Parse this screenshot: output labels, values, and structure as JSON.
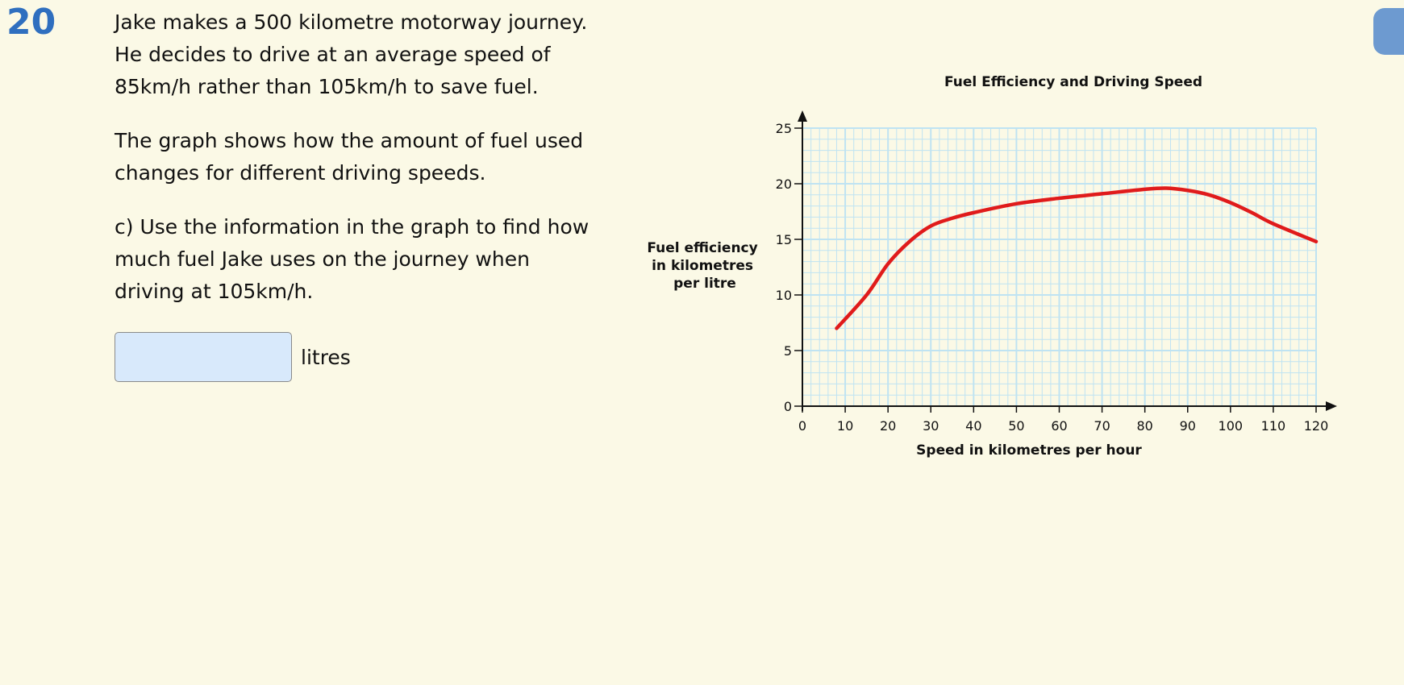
{
  "question": {
    "number": "20",
    "paragraphs": [
      [
        "Jake makes a 500 kilometre motorway journey.",
        "He decides to drive at an average speed of",
        "85km/h rather than 105km/h to save fuel."
      ],
      [
        "The graph shows how the amount of fuel used",
        "changes for different driving speeds."
      ],
      [
        "c) Use the information in the graph to find how",
        "much fuel Jake uses on the journey when",
        "driving at 105km/h."
      ]
    ],
    "answer": {
      "value": "",
      "placeholder": "",
      "unit": "litres"
    }
  },
  "chart_data": {
    "type": "line",
    "title": "Fuel Efficiency and Driving Speed",
    "xlabel": "Speed in kilometres per hour",
    "ylabel": [
      "Fuel efficiency",
      "in kilometres",
      "per litre"
    ],
    "xlim": [
      0,
      120
    ],
    "ylim": [
      0,
      25
    ],
    "x_ticks": [
      0,
      10,
      20,
      30,
      40,
      50,
      60,
      70,
      80,
      90,
      100,
      110,
      120
    ],
    "y_ticks": [
      0,
      5,
      10,
      15,
      20,
      25
    ],
    "grid": true,
    "series_color": "#e01b1b",
    "grid_color": "#bfe3f2",
    "series": [
      {
        "x": [
          8,
          15,
          20,
          25,
          30,
          35,
          40,
          50,
          60,
          70,
          80,
          85,
          90,
          95,
          100,
          105,
          110,
          120
        ],
        "y": [
          7,
          10,
          12.8,
          14.8,
          16.2,
          16.9,
          17.4,
          18.2,
          18.7,
          19.1,
          19.5,
          19.6,
          19.4,
          19,
          18.3,
          17.4,
          16.4,
          14.8
        ]
      }
    ]
  }
}
